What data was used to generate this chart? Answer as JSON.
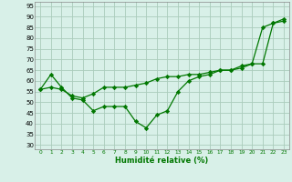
{
  "line1_x": [
    0,
    1,
    2,
    3,
    4,
    5,
    6,
    7,
    8,
    9,
    10,
    11,
    12,
    13,
    14,
    15,
    16,
    17,
    18,
    19,
    20,
    21,
    22,
    23
  ],
  "line1_y": [
    56,
    63,
    57,
    52,
    51,
    46,
    48,
    48,
    48,
    41,
    38,
    44,
    46,
    55,
    60,
    62,
    63,
    65,
    65,
    67,
    68,
    85,
    87,
    89
  ],
  "line2_x": [
    0,
    1,
    2,
    3,
    4,
    5,
    6,
    7,
    8,
    9,
    10,
    11,
    12,
    13,
    14,
    15,
    16,
    17,
    18,
    19,
    20,
    21,
    22,
    23
  ],
  "line2_y": [
    56,
    57,
    56,
    53,
    52,
    54,
    57,
    57,
    57,
    58,
    59,
    61,
    62,
    62,
    63,
    63,
    64,
    65,
    65,
    66,
    68,
    68,
    87,
    88
  ],
  "line_color": "#007700",
  "bg_color": "#d8f0e8",
  "grid_color": "#aaccbb",
  "xlabel": "Humidité relative (%)",
  "xlabel_color": "#007700",
  "yticks": [
    30,
    35,
    40,
    45,
    50,
    55,
    60,
    65,
    70,
    75,
    80,
    85,
    90,
    95
  ],
  "xticks": [
    0,
    1,
    2,
    3,
    4,
    5,
    6,
    7,
    8,
    9,
    10,
    11,
    12,
    13,
    14,
    15,
    16,
    17,
    18,
    19,
    20,
    21,
    22,
    23
  ],
  "ylim": [
    28,
    97
  ],
  "xlim": [
    -0.5,
    23.5
  ],
  "marker": "D",
  "markersize": 2.2,
  "linewidth": 0.9
}
